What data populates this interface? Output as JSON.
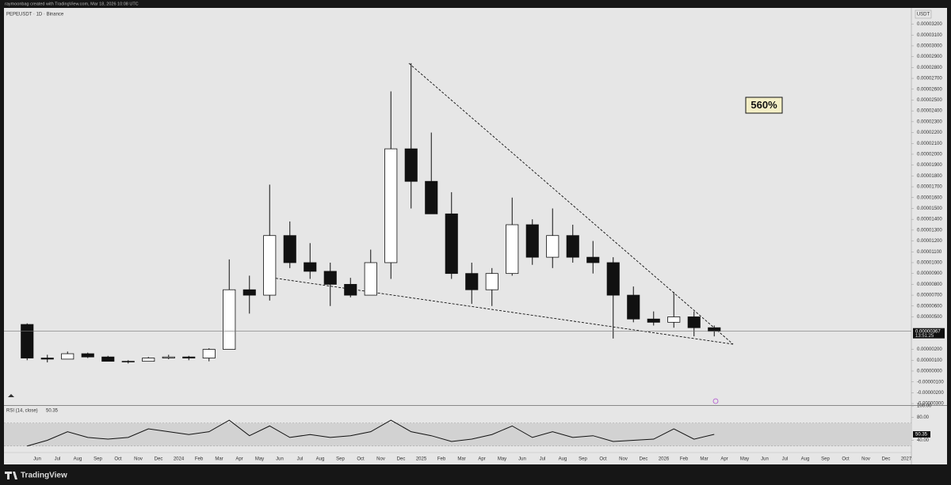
{
  "header": {
    "credit": "raymoonbag created with TradingView.com, Mar 18, 2026 10:08 UTC",
    "brand": "TradingView"
  },
  "chart_data": [
    {
      "type": "candlestick",
      "title": "PEPEUSDT · 1D · Binance",
      "currency": "USDT",
      "annotation": "560%",
      "color": "#111111",
      "up_color": "#ffffff",
      "down_color": "#111111",
      "grid": false,
      "categories": [
        null,
        "Jun",
        "Jul",
        "Aug",
        "Sep",
        "Oct",
        "Nov",
        "Dec",
        "2024",
        "Feb",
        "Mar",
        "Apr",
        "May",
        "Jun",
        "Jul",
        "Aug",
        "Sep",
        "Oct",
        "Nov",
        "Dec",
        "2025",
        "Feb",
        "Mar",
        "Apr",
        "May",
        "Jun",
        "Jul",
        "Aug",
        "Sep",
        "Oct",
        "Nov",
        "Dec",
        "2026",
        "Feb",
        "Mar",
        "Apr",
        "May",
        "Jun",
        "Jul",
        "Aug",
        "Sep",
        "Oct",
        "Nov",
        "Dec",
        "2027"
      ],
      "open": [
        4.3e-06,
        1.2e-06,
        1.1e-06,
        1.6e-06,
        1.3e-06,
        9e-07,
        9e-07,
        1.2e-06,
        1.3e-06,
        1.2e-06,
        2e-06,
        7.5e-06,
        7e-06,
        1.25e-05,
        1e-05,
        9.2e-06,
        8e-06,
        7e-06,
        1e-05,
        2.05e-05,
        1.75e-05,
        1.45e-05,
        9e-06,
        7.5e-06,
        9e-06,
        1.35e-05,
        1.05e-05,
        1.25e-05,
        1.05e-05,
        1e-05,
        7e-06,
        4.8e-06,
        4.5e-06,
        5e-06,
        4e-06,
        null,
        null,
        null,
        null,
        null,
        null,
        null,
        null,
        null,
        null
      ],
      "high": [
        4.4e-06,
        1.5e-06,
        1.8e-06,
        1.7e-06,
        1.4e-06,
        1e-06,
        1.3e-06,
        1.5e-06,
        1.4e-06,
        2.1e-06,
        1.03e-05,
        8.8e-06,
        1.72e-05,
        1.38e-05,
        1.18e-05,
        1e-05,
        8.6e-06,
        1.12e-05,
        2.58e-05,
        2.84e-05,
        2.2e-05,
        1.65e-05,
        1e-05,
        9.5e-06,
        1.6e-05,
        1.4e-05,
        1.5e-05,
        1.35e-05,
        1.2e-05,
        1.05e-05,
        7.8e-06,
        5.5e-06,
        7.3e-06,
        5.5e-06,
        4.2e-06,
        null,
        null,
        null,
        null,
        null,
        null,
        null,
        null,
        null,
        null
      ],
      "low": [
        1e-06,
        8e-07,
        1.1e-06,
        1.2e-06,
        9e-07,
        7e-07,
        9e-07,
        1.1e-06,
        1e-06,
        9e-07,
        2e-06,
        5.3e-06,
        6.5e-06,
        9.5e-06,
        8.5e-06,
        6e-06,
        6.8e-06,
        7e-06,
        8.5e-06,
        1.5e-05,
        1.45e-05,
        8.5e-06,
        6.2e-06,
        6e-06,
        8.8e-06,
        9.8e-06,
        9.5e-06,
        1e-05,
        9e-06,
        3e-06,
        4.5e-06,
        4.2e-06,
        4e-06,
        3.2e-06,
        3.2e-06,
        null,
        null,
        null,
        null,
        null,
        null,
        null,
        null,
        null,
        null
      ],
      "close": [
        1.2e-06,
        1.1e-06,
        1.6e-06,
        1.3e-06,
        9e-07,
        9e-07,
        1.2e-06,
        1.3e-06,
        1.2e-06,
        2e-06,
        7.5e-06,
        7e-06,
        1.25e-05,
        1e-05,
        9.2e-06,
        8e-06,
        7e-06,
        1e-05,
        2.05e-05,
        1.75e-05,
        1.45e-05,
        9e-06,
        7.5e-06,
        9e-06,
        1.35e-05,
        1.05e-05,
        1.25e-05,
        1.05e-05,
        1e-05,
        7e-06,
        4.8e-06,
        4.5e-06,
        5e-06,
        4e-06,
        3.67e-06,
        null,
        null,
        null,
        null,
        null,
        null,
        null,
        null,
        null,
        null
      ],
      "last_price": {
        "value": 3.67e-06,
        "label": "0.00000367"
      },
      "countdown": "13:51:25",
      "ylim": [
        -3.14e-06,
        3.35e-05
      ],
      "yticks": [
        {
          "value": 3.2e-05,
          "label": "0.00003200"
        },
        {
          "value": 3.1e-05,
          "label": "0.00003100"
        },
        {
          "value": 3e-05,
          "label": "0.00003000"
        },
        {
          "value": 2.9e-05,
          "label": "0.00002900"
        },
        {
          "value": 2.8e-05,
          "label": "0.00002800"
        },
        {
          "value": 2.7e-05,
          "label": "0.00002700"
        },
        {
          "value": 2.6e-05,
          "label": "0.00002600"
        },
        {
          "value": 2.5e-05,
          "label": "0.00002500"
        },
        {
          "value": 2.4e-05,
          "label": "0.00002400"
        },
        {
          "value": 2.3e-05,
          "label": "0.00002300"
        },
        {
          "value": 2.2e-05,
          "label": "0.00002200"
        },
        {
          "value": 2.1e-05,
          "label": "0.00002100"
        },
        {
          "value": 2e-05,
          "label": "0.00002000"
        },
        {
          "value": 1.9e-05,
          "label": "0.00001900"
        },
        {
          "value": 1.8e-05,
          "label": "0.00001800"
        },
        {
          "value": 1.7e-05,
          "label": "0.00001700"
        },
        {
          "value": 1.6e-05,
          "label": "0.00001600"
        },
        {
          "value": 1.5e-05,
          "label": "0.00001500"
        },
        {
          "value": 1.4e-05,
          "label": "0.00001400"
        },
        {
          "value": 1.3e-05,
          "label": "0.00001300"
        },
        {
          "value": 1.2e-05,
          "label": "0.00001200"
        },
        {
          "value": 1.1e-05,
          "label": "0.00001100"
        },
        {
          "value": 1e-05,
          "label": "0.00001000"
        },
        {
          "value": 9e-06,
          "label": "0.00000900"
        },
        {
          "value": 8e-06,
          "label": "0.00000800"
        },
        {
          "value": 7e-06,
          "label": "0.00000700"
        },
        {
          "value": 6e-06,
          "label": "0.00000600"
        },
        {
          "value": 5e-06,
          "label": "0.00000500"
        },
        {
          "value": 2e-06,
          "label": "0.00000200"
        },
        {
          "value": 1e-06,
          "label": "0.00000100"
        },
        {
          "value": 0,
          "label": "0.00000000"
        },
        {
          "value": -1e-06,
          "label": "-0.00000100"
        },
        {
          "value": -2e-06,
          "label": "-0.00000200"
        },
        {
          "value": -3e-06,
          "label": "-0.00000300"
        }
      ]
    },
    {
      "type": "line",
      "title": "RSI (14, close)",
      "color": "#111111",
      "band": [
        30,
        70
      ],
      "values": [
        30,
        40,
        55,
        45,
        42,
        45,
        60,
        55,
        50,
        55,
        75,
        48,
        65,
        45,
        50,
        45,
        48,
        55,
        75,
        55,
        48,
        38,
        42,
        50,
        65,
        45,
        55,
        45,
        48,
        38,
        40,
        42,
        60,
        42,
        50.35,
        null,
        null,
        null,
        null,
        null,
        null,
        null,
        null,
        null,
        null
      ],
      "ylim": [
        20,
        100
      ],
      "yticks": [
        {
          "value": 100,
          "label": "100.00"
        },
        {
          "value": 80,
          "label": "80.00"
        },
        {
          "value": 40,
          "label": "40.00"
        }
      ]
    }
  ]
}
